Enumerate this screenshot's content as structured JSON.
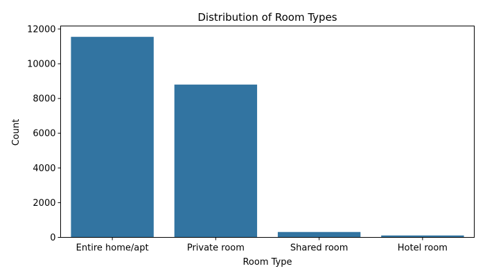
{
  "chart_data": {
    "type": "bar",
    "title": "Distribution of Room Types",
    "xlabel": "Room Type",
    "ylabel": "Count",
    "categories": [
      "Entire home/apt",
      "Private room",
      "Shared room",
      "Hotel room"
    ],
    "values": [
      11550,
      8800,
      310,
      110
    ],
    "ylim": [
      0,
      12175
    ],
    "yticks": [
      0,
      2000,
      4000,
      6000,
      8000,
      10000,
      12000
    ],
    "grid": false,
    "legend": "none",
    "bar_color": "#3274a1"
  }
}
